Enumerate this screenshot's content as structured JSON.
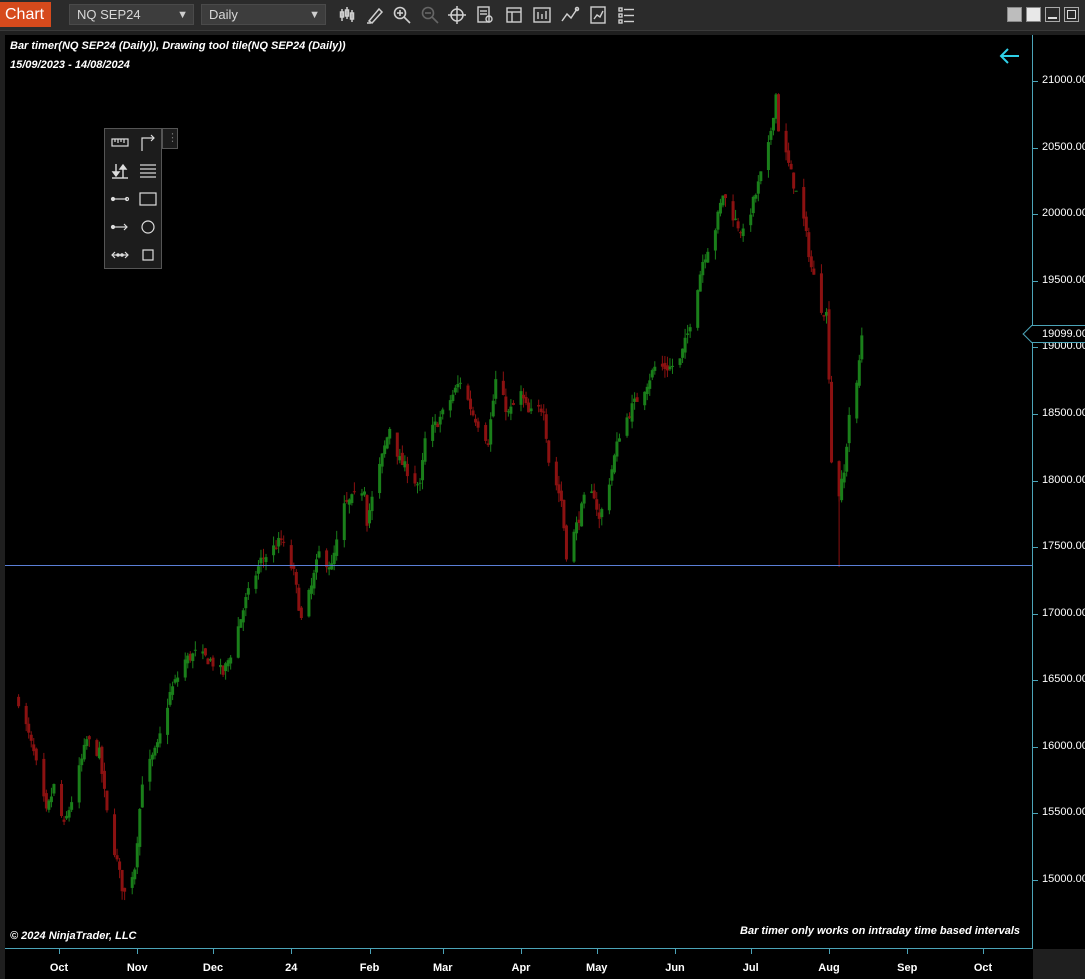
{
  "toolbar": {
    "tab_label": "Chart",
    "instrument": "NQ SEP24",
    "interval": "Daily",
    "icons": [
      "bar-type-icon",
      "drawing-tools-icon",
      "zoom-in-icon",
      "zoom-out-icon",
      "crosshair-icon",
      "data-box-icon",
      "templates-icon",
      "chart-trader-icon",
      "indicators-icon",
      "strategies-icon",
      "properties-icon"
    ],
    "window_buttons": [
      "tile-icon",
      "restore-icon",
      "minimize-icon",
      "maximize-icon"
    ]
  },
  "chart": {
    "title": "Bar timer(NQ SEP24 (Daily)), Drawing tool tile(NQ SEP24 (Daily))",
    "date_range": "15/09/2023 - 14/08/2024",
    "copyright": "© 2024 NinjaTrader, LLC",
    "bar_timer_message": "Bar timer only works on intraday time based intervals",
    "last_price_label": "19099.00",
    "horizontal_line_price": 17365,
    "colors": {
      "up": "#1a7f1a",
      "down": "#8b1111",
      "axis": "#4ba4b8",
      "line": "#5b7fd6",
      "background": "#000000"
    }
  },
  "tool_tile": {
    "tools": [
      "ruler-icon",
      "risk-reward-icon",
      "price-marker-icon",
      "fibonacci-icon",
      "line-icon",
      "rectangle-icon",
      "ray-icon",
      "ellipse-icon",
      "extended-line-icon",
      "region-icon"
    ]
  },
  "chart_data": {
    "type": "candlestick",
    "x_axis_labels": [
      "Oct",
      "Nov",
      "Dec",
      "24",
      "Feb",
      "Mar",
      "Apr",
      "May",
      "Jun",
      "Jul",
      "Aug",
      "Sep",
      "Oct"
    ],
    "y_axis_labels": [
      "21000.00",
      "20500.00",
      "20000.00",
      "19500.00",
      "19000.00",
      "18500.00",
      "18000.00",
      "17500.00",
      "17000.00",
      "16500.00",
      "16000.00",
      "15500.00",
      "15000.00"
    ],
    "ylim": [
      14550,
      21300
    ],
    "date_range": [
      "2023-09-15",
      "2024-08-14"
    ],
    "close_path": [
      [
        "2023-09-15",
        16350
      ],
      [
        "2023-09-21",
        15950
      ],
      [
        "2023-09-26",
        15500
      ],
      [
        "2023-09-29",
        15700
      ],
      [
        "2023-10-03",
        15400
      ],
      [
        "2023-10-06",
        15600
      ],
      [
        "2023-10-12",
        16050
      ],
      [
        "2023-10-17",
        15950
      ],
      [
        "2023-10-20",
        15500
      ],
      [
        "2023-10-26",
        14950
      ],
      [
        "2023-10-27",
        14900
      ],
      [
        "2023-10-31",
        15100
      ],
      [
        "2023-11-03",
        15750
      ],
      [
        "2023-11-09",
        16000
      ],
      [
        "2023-11-14",
        16400
      ],
      [
        "2023-11-20",
        16650
      ],
      [
        "2023-11-24",
        16700
      ],
      [
        "2023-11-30",
        16650
      ],
      [
        "2023-12-05",
        16550
      ],
      [
        "2023-12-08",
        16700
      ],
      [
        "2023-12-14",
        17100
      ],
      [
        "2023-12-20",
        17400
      ],
      [
        "2023-12-28",
        17550
      ],
      [
        "2024-01-02",
        17300
      ],
      [
        "2024-01-05",
        16950
      ],
      [
        "2024-01-09",
        17200
      ],
      [
        "2024-01-12",
        17450
      ],
      [
        "2024-01-17",
        17350
      ],
      [
        "2024-01-22",
        17800
      ],
      [
        "2024-01-30",
        17950
      ],
      [
        "2024-01-31",
        17700
      ],
      [
        "2024-02-05",
        18100
      ],
      [
        "2024-02-09",
        18400
      ],
      [
        "2024-02-13",
        18150
      ],
      [
        "2024-02-21",
        17950
      ],
      [
        "2024-02-23",
        18300
      ],
      [
        "2024-03-01",
        18500
      ],
      [
        "2024-03-08",
        18750
      ],
      [
        "2024-03-13",
        18500
      ],
      [
        "2024-03-19",
        18300
      ],
      [
        "2024-03-22",
        18750
      ],
      [
        "2024-03-27",
        18500
      ],
      [
        "2024-04-01",
        18650
      ],
      [
        "2024-04-04",
        18500
      ],
      [
        "2024-04-10",
        18550
      ],
      [
        "2024-04-12",
        18150
      ],
      [
        "2024-04-17",
        17850
      ],
      [
        "2024-04-19",
        17450
      ],
      [
        "2024-04-22",
        17600
      ],
      [
        "2024-04-26",
        17850
      ],
      [
        "2024-04-30",
        17900
      ],
      [
        "2024-05-02",
        17700
      ],
      [
        "2024-05-06",
        18000
      ],
      [
        "2024-05-10",
        18350
      ],
      [
        "2024-05-15",
        18550
      ],
      [
        "2024-05-20",
        18700
      ],
      [
        "2024-05-24",
        18850
      ],
      [
        "2024-05-30",
        18850
      ],
      [
        "2024-06-03",
        18900
      ],
      [
        "2024-06-06",
        19100
      ],
      [
        "2024-06-12",
        19650
      ],
      [
        "2024-06-17",
        19900
      ],
      [
        "2024-06-20",
        20150
      ],
      [
        "2024-06-25",
        19950
      ],
      [
        "2024-06-28",
        19850
      ],
      [
        "2024-07-03",
        20150
      ],
      [
        "2024-07-08",
        20500
      ],
      [
        "2024-07-11",
        20900
      ],
      [
        "2024-07-12",
        20650
      ],
      [
        "2024-07-17",
        20300
      ],
      [
        "2024-07-22",
        19950
      ],
      [
        "2024-07-25",
        19600
      ],
      [
        "2024-07-29",
        19300
      ],
      [
        "2024-07-31",
        19250
      ],
      [
        "2024-08-01",
        18800
      ],
      [
        "2024-08-02",
        18150
      ],
      [
        "2024-08-05",
        17900
      ],
      [
        "2024-08-07",
        18050
      ],
      [
        "2024-08-09",
        18500
      ],
      [
        "2024-08-12",
        18700
      ],
      [
        "2024-08-14",
        19099
      ]
    ]
  }
}
